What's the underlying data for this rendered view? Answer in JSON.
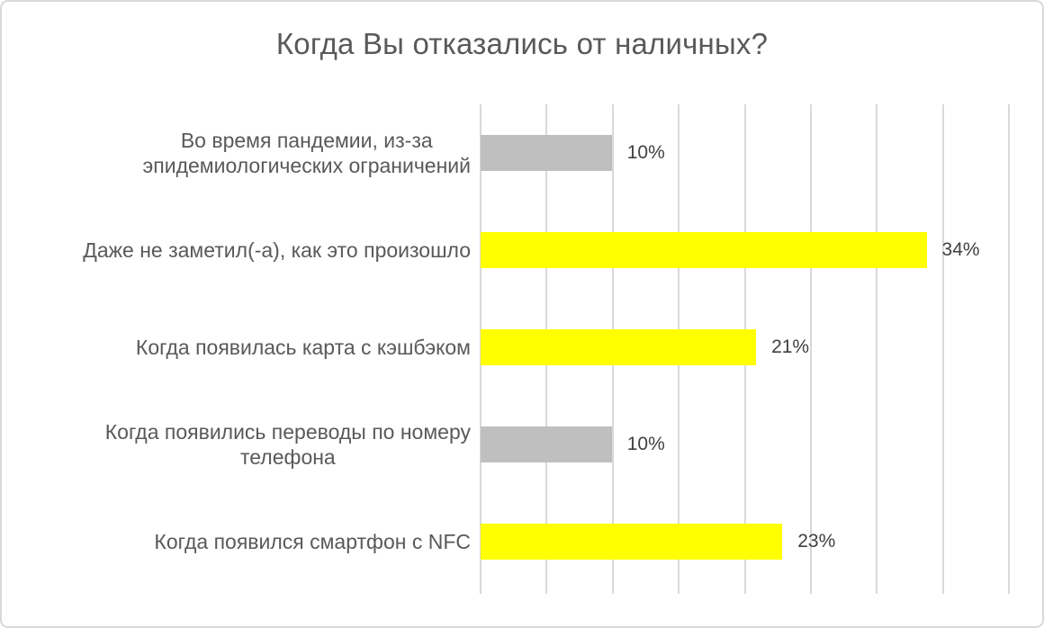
{
  "chart_data": {
    "type": "bar",
    "orientation": "horizontal",
    "title": "Когда Вы отказались от наличных?",
    "categories": [
      "Во время пандемии, из-за\nэпидемиологических ограничений",
      "Даже не заметил(-а), как это произошло",
      "Когда появилась карта с кэшбэком",
      "Когда появились переводы по номеру\nтелефона",
      "Когда появился смартфон с NFC"
    ],
    "values": [
      10,
      34,
      21,
      10,
      23
    ],
    "value_labels": [
      "10%",
      "34%",
      "21%",
      "10%",
      "23%"
    ],
    "bar_colors": [
      "#BFBFBF",
      "#FFFF00",
      "#FFFF00",
      "#BFBFBF",
      "#FFFF00"
    ],
    "xlabel": "",
    "ylabel": "",
    "xlim": [
      0,
      40
    ],
    "gridline_step": 5,
    "grid": "vertical-only",
    "axis_tick_labels_visible": false,
    "legend": "none",
    "colors": {
      "bar_yellow": "#FFFF00",
      "bar_gray": "#BFBFBF",
      "gridline": "#D9D9D9",
      "frame_border": "#D9D9D9",
      "title_text": "#595959",
      "category_text": "#595959",
      "value_text": "#404040",
      "background": "#FFFFFF"
    }
  }
}
